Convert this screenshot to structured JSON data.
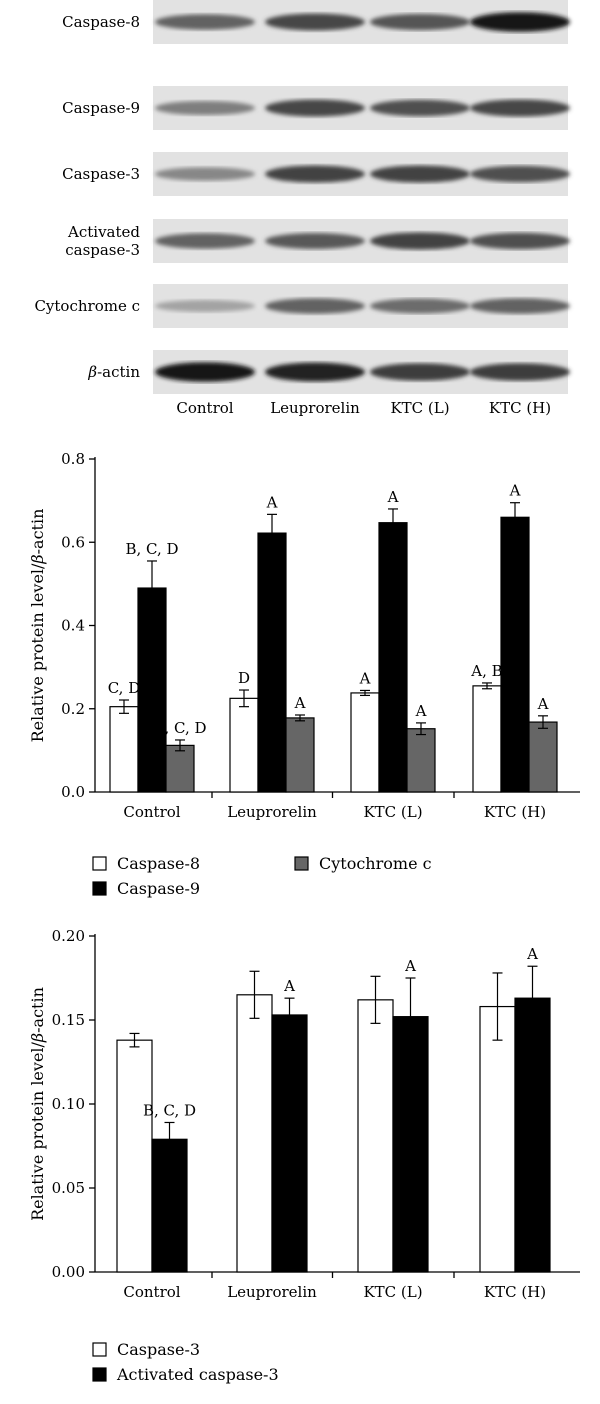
{
  "blot": {
    "rows": [
      {
        "label": "Caspase-8",
        "intensity": [
          0.55,
          0.7,
          0.62,
          0.95
        ]
      },
      {
        "label": "Caspase-9",
        "intensity": [
          0.4,
          0.7,
          0.65,
          0.7
        ]
      },
      {
        "label": "Caspase-3",
        "intensity": [
          0.35,
          0.72,
          0.72,
          0.65
        ]
      },
      {
        "label": [
          "Activated",
          "caspase-3"
        ],
        "intensity": [
          0.55,
          0.6,
          0.72,
          0.65
        ]
      },
      {
        "label": "Cytochrome c",
        "intensity": [
          0.2,
          0.55,
          0.5,
          0.55
        ]
      },
      {
        "label_prefix": "β",
        "label_suffix": "-actin",
        "intensity": [
          0.95,
          0.9,
          0.75,
          0.75
        ]
      }
    ],
    "lanes": [
      "Control",
      "Leuprorelin",
      "KTC (L)",
      "KTC (H)"
    ]
  },
  "chart_data": [
    {
      "type": "bar",
      "categories": [
        "Control",
        "Leuprorelin",
        "KTC (L)",
        "KTC (H)"
      ],
      "ylabel_prefix": "Relative protein level/",
      "ylabel_italic": "β",
      "ylabel_suffix": "-actin",
      "ylim": [
        0,
        0.8
      ],
      "ticks": [
        "0.0",
        "0.2",
        "0.4",
        "0.6",
        "0.8"
      ],
      "tick_values": [
        0.0,
        0.2,
        0.4,
        0.6,
        0.8
      ],
      "legend_position": "bottom",
      "series": [
        {
          "name": "Caspase-8",
          "color": "#ffffff",
          "values": [
            0.205,
            0.225,
            0.238,
            0.255
          ],
          "errors": [
            0.016,
            0.02,
            0.006,
            0.007
          ],
          "labels": [
            "C, D",
            "D",
            "A",
            "A, B"
          ]
        },
        {
          "name": "Caspase-9",
          "color": "#000000",
          "values": [
            0.49,
            0.622,
            0.647,
            0.66
          ],
          "errors": [
            0.065,
            0.045,
            0.033,
            0.035
          ],
          "labels": [
            "B, C, D",
            "A",
            "A",
            "A"
          ]
        },
        {
          "name": "Cytochrome c",
          "color": "#666666",
          "values": [
            0.112,
            0.178,
            0.152,
            0.168
          ],
          "errors": [
            0.013,
            0.007,
            0.014,
            0.015
          ],
          "labels": [
            "B, C, D",
            "A",
            "A",
            "A"
          ]
        }
      ]
    },
    {
      "type": "bar",
      "categories": [
        "Control",
        "Leuprorelin",
        "KTC (L)",
        "KTC (H)"
      ],
      "ylabel_prefix": "Relative protein level/",
      "ylabel_italic": "β",
      "ylabel_suffix": "-actin",
      "ylim": [
        0,
        0.2
      ],
      "ticks": [
        "0.00",
        "0.05",
        "0.10",
        "0.15",
        "0.20"
      ],
      "tick_values": [
        0.0,
        0.05,
        0.1,
        0.15,
        0.2
      ],
      "legend_position": "bottom",
      "series": [
        {
          "name": "Caspase-3",
          "color": "#ffffff",
          "values": [
            0.138,
            0.165,
            0.162,
            0.158
          ],
          "errors": [
            0.004,
            0.014,
            0.014,
            0.02
          ],
          "labels": [
            "",
            "",
            "",
            ""
          ]
        },
        {
          "name": "Activated caspase-3",
          "color": "#000000",
          "values": [
            0.079,
            0.153,
            0.152,
            0.163
          ],
          "errors": [
            0.01,
            0.01,
            0.023,
            0.019
          ],
          "labels": [
            "B, C, D",
            "A",
            "A",
            "A"
          ]
        }
      ]
    }
  ]
}
